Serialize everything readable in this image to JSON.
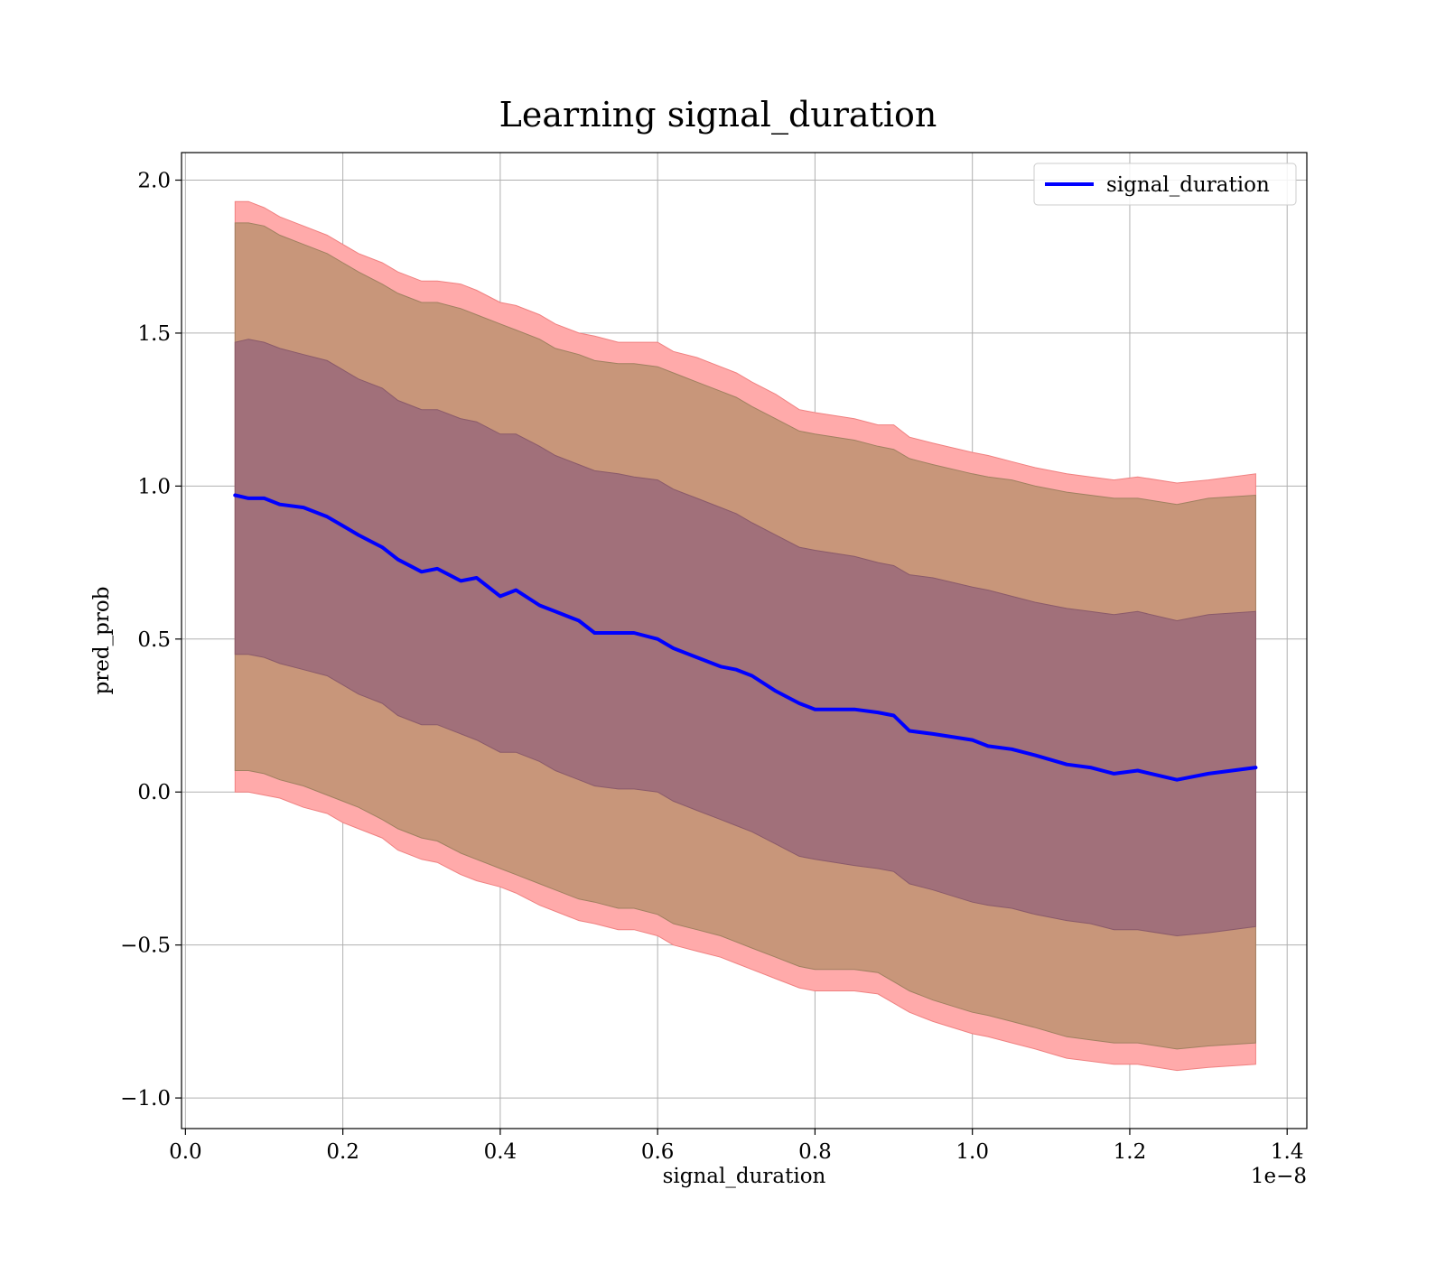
{
  "chart_data": {
    "type": "line",
    "title": "Learning signal_duration",
    "xlabel": "signal_duration",
    "ylabel": "pred_prob",
    "x_offset_label": "1e−8",
    "xlim": [
      -0.005,
      1.425
    ],
    "ylim": [
      -1.1,
      2.09
    ],
    "x_ticks": [
      0.0,
      0.2,
      0.4,
      0.6,
      0.8,
      1.0,
      1.2,
      1.4
    ],
    "x_tick_labels": [
      "0.0",
      "0.2",
      "0.4",
      "0.6",
      "0.8",
      "1.0",
      "1.2",
      "1.4"
    ],
    "y_ticks": [
      -1.0,
      -0.5,
      0.0,
      0.5,
      1.0,
      1.5,
      2.0
    ],
    "y_tick_labels": [
      "−1.0",
      "−0.5",
      "0.0",
      "0.5",
      "1.0",
      "1.5",
      "2.0"
    ],
    "grid": true,
    "legend": {
      "position": "top-right",
      "entries": [
        {
          "name": "signal_duration",
          "color": "#0000ff"
        }
      ]
    },
    "colors": {
      "line": "#0000ff",
      "outer_band": "#ffaaaa",
      "inner_band": "#a1707a",
      "middle_band": "#c8967a"
    },
    "x": [
      0.063,
      0.08,
      0.1,
      0.12,
      0.15,
      0.18,
      0.2,
      0.22,
      0.25,
      0.27,
      0.3,
      0.32,
      0.35,
      0.37,
      0.4,
      0.42,
      0.45,
      0.47,
      0.5,
      0.52,
      0.55,
      0.57,
      0.6,
      0.62,
      0.65,
      0.68,
      0.7,
      0.72,
      0.75,
      0.78,
      0.8,
      0.85,
      0.88,
      0.9,
      0.92,
      0.95,
      1.0,
      1.02,
      1.05,
      1.08,
      1.12,
      1.15,
      1.18,
      1.21,
      1.26,
      1.3,
      1.36
    ],
    "series": [
      {
        "name": "signal_duration",
        "values": [
          0.97,
          0.96,
          0.96,
          0.94,
          0.93,
          0.9,
          0.87,
          0.84,
          0.8,
          0.76,
          0.72,
          0.73,
          0.69,
          0.7,
          0.64,
          0.66,
          0.61,
          0.59,
          0.56,
          0.52,
          0.52,
          0.52,
          0.5,
          0.47,
          0.44,
          0.41,
          0.4,
          0.38,
          0.33,
          0.29,
          0.27,
          0.27,
          0.26,
          0.25,
          0.2,
          0.19,
          0.17,
          0.15,
          0.14,
          0.12,
          0.09,
          0.08,
          0.06,
          0.07,
          0.04,
          0.06,
          0.08
        ]
      }
    ],
    "bands": [
      {
        "kind": "outer",
        "upper": [
          1.93,
          1.93,
          1.91,
          1.88,
          1.85,
          1.82,
          1.79,
          1.76,
          1.73,
          1.7,
          1.67,
          1.67,
          1.66,
          1.64,
          1.6,
          1.59,
          1.56,
          1.53,
          1.5,
          1.49,
          1.47,
          1.47,
          1.47,
          1.44,
          1.42,
          1.39,
          1.37,
          1.34,
          1.3,
          1.25,
          1.24,
          1.22,
          1.2,
          1.2,
          1.16,
          1.14,
          1.11,
          1.1,
          1.08,
          1.06,
          1.04,
          1.03,
          1.02,
          1.03,
          1.01,
          1.02,
          1.04
        ],
        "lower": [
          0.0,
          0.0,
          -0.01,
          -0.02,
          -0.05,
          -0.07,
          -0.1,
          -0.12,
          -0.15,
          -0.19,
          -0.22,
          -0.23,
          -0.27,
          -0.29,
          -0.31,
          -0.33,
          -0.37,
          -0.39,
          -0.42,
          -0.43,
          -0.45,
          -0.45,
          -0.47,
          -0.5,
          -0.52,
          -0.54,
          -0.56,
          -0.58,
          -0.61,
          -0.64,
          -0.65,
          -0.65,
          -0.66,
          -0.69,
          -0.72,
          -0.75,
          -0.79,
          -0.8,
          -0.82,
          -0.84,
          -0.87,
          -0.88,
          -0.89,
          -0.89,
          -0.91,
          -0.9,
          -0.89
        ]
      },
      {
        "kind": "middle",
        "upper": [
          1.86,
          1.86,
          1.85,
          1.82,
          1.79,
          1.76,
          1.73,
          1.7,
          1.66,
          1.63,
          1.6,
          1.6,
          1.58,
          1.56,
          1.53,
          1.51,
          1.48,
          1.45,
          1.43,
          1.41,
          1.4,
          1.4,
          1.39,
          1.37,
          1.34,
          1.31,
          1.29,
          1.26,
          1.22,
          1.18,
          1.17,
          1.15,
          1.13,
          1.12,
          1.09,
          1.07,
          1.04,
          1.03,
          1.02,
          1.0,
          0.98,
          0.97,
          0.96,
          0.96,
          0.94,
          0.96,
          0.97
        ],
        "lower": [
          0.07,
          0.07,
          0.06,
          0.04,
          0.02,
          -0.01,
          -0.03,
          -0.05,
          -0.09,
          -0.12,
          -0.15,
          -0.16,
          -0.2,
          -0.22,
          -0.25,
          -0.27,
          -0.3,
          -0.32,
          -0.35,
          -0.36,
          -0.38,
          -0.38,
          -0.4,
          -0.43,
          -0.45,
          -0.47,
          -0.49,
          -0.51,
          -0.54,
          -0.57,
          -0.58,
          -0.58,
          -0.59,
          -0.62,
          -0.65,
          -0.68,
          -0.72,
          -0.73,
          -0.75,
          -0.77,
          -0.8,
          -0.81,
          -0.82,
          -0.82,
          -0.84,
          -0.83,
          -0.82
        ]
      },
      {
        "kind": "inner",
        "upper": [
          1.47,
          1.48,
          1.47,
          1.45,
          1.43,
          1.41,
          1.38,
          1.35,
          1.32,
          1.28,
          1.25,
          1.25,
          1.22,
          1.21,
          1.17,
          1.17,
          1.13,
          1.1,
          1.07,
          1.05,
          1.04,
          1.03,
          1.02,
          0.99,
          0.96,
          0.93,
          0.91,
          0.88,
          0.84,
          0.8,
          0.79,
          0.77,
          0.75,
          0.74,
          0.71,
          0.7,
          0.67,
          0.66,
          0.64,
          0.62,
          0.6,
          0.59,
          0.58,
          0.59,
          0.56,
          0.58,
          0.59
        ],
        "lower": [
          0.45,
          0.45,
          0.44,
          0.42,
          0.4,
          0.38,
          0.35,
          0.32,
          0.29,
          0.25,
          0.22,
          0.22,
          0.19,
          0.17,
          0.13,
          0.13,
          0.1,
          0.07,
          0.04,
          0.02,
          0.01,
          0.01,
          0.0,
          -0.03,
          -0.06,
          -0.09,
          -0.11,
          -0.13,
          -0.17,
          -0.21,
          -0.22,
          -0.24,
          -0.25,
          -0.26,
          -0.3,
          -0.32,
          -0.36,
          -0.37,
          -0.38,
          -0.4,
          -0.42,
          -0.43,
          -0.45,
          -0.45,
          -0.47,
          -0.46,
          -0.44
        ]
      }
    ]
  }
}
